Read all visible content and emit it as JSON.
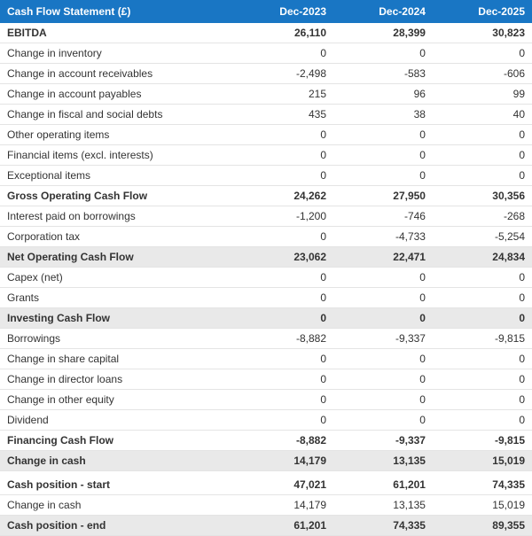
{
  "table": {
    "header": {
      "title": "Cash Flow Statement (£)",
      "periods": [
        "Dec-2023",
        "Dec-2024",
        "Dec-2025"
      ]
    },
    "colors": {
      "header_bg": "#1976c4",
      "header_fg": "#ffffff",
      "row_border": "#e4e4e4",
      "shaded_bg": "#e9e9e9",
      "text": "#333333"
    },
    "fontsize": 12,
    "rows": [
      {
        "label": "EBITDA",
        "v": [
          "26,110",
          "28,399",
          "30,823"
        ],
        "bold": true
      },
      {
        "label": "Change in inventory",
        "v": [
          "0",
          "0",
          "0"
        ]
      },
      {
        "label": "Change in account receivables",
        "v": [
          "-2,498",
          "-583",
          "-606"
        ]
      },
      {
        "label": "Change in account payables",
        "v": [
          "215",
          "96",
          "99"
        ]
      },
      {
        "label": "Change in fiscal and social debts",
        "v": [
          "435",
          "38",
          "40"
        ]
      },
      {
        "label": "Other operating items",
        "v": [
          "0",
          "0",
          "0"
        ]
      },
      {
        "label": "Financial items (excl. interests)",
        "v": [
          "0",
          "0",
          "0"
        ]
      },
      {
        "label": "Exceptional items",
        "v": [
          "0",
          "0",
          "0"
        ]
      },
      {
        "label": "Gross Operating Cash Flow",
        "v": [
          "24,262",
          "27,950",
          "30,356"
        ],
        "bold": true
      },
      {
        "label": "Interest paid on borrowings",
        "v": [
          "-1,200",
          "-746",
          "-268"
        ]
      },
      {
        "label": "Corporation tax",
        "v": [
          "0",
          "-4,733",
          "-5,254"
        ]
      },
      {
        "label": "Net Operating Cash Flow",
        "v": [
          "23,062",
          "22,471",
          "24,834"
        ],
        "bold": true,
        "shaded": true
      },
      {
        "label": "Capex (net)",
        "v": [
          "0",
          "0",
          "0"
        ]
      },
      {
        "label": "Grants",
        "v": [
          "0",
          "0",
          "0"
        ]
      },
      {
        "label": "Investing Cash Flow",
        "v": [
          "0",
          "0",
          "0"
        ],
        "bold": true,
        "shaded": true
      },
      {
        "label": "Borrowings",
        "v": [
          "-8,882",
          "-9,337",
          "-9,815"
        ]
      },
      {
        "label": "Change in share capital",
        "v": [
          "0",
          "0",
          "0"
        ]
      },
      {
        "label": "Change in director loans",
        "v": [
          "0",
          "0",
          "0"
        ]
      },
      {
        "label": "Change in other equity",
        "v": [
          "0",
          "0",
          "0"
        ]
      },
      {
        "label": "Dividend",
        "v": [
          "0",
          "0",
          "0"
        ]
      },
      {
        "label": "Financing Cash Flow",
        "v": [
          "-8,882",
          "-9,337",
          "-9,815"
        ],
        "bold": true
      },
      {
        "label": "Change in cash",
        "v": [
          "14,179",
          "13,135",
          "15,019"
        ],
        "bold": true,
        "shaded": true
      },
      {
        "spacer": true
      },
      {
        "label": "Cash position - start",
        "v": [
          "47,021",
          "61,201",
          "74,335"
        ],
        "bold": true
      },
      {
        "label": "Change in cash",
        "v": [
          "14,179",
          "13,135",
          "15,019"
        ]
      },
      {
        "label": "Cash position - end",
        "v": [
          "61,201",
          "74,335",
          "89,355"
        ],
        "bold": true,
        "shaded": true
      }
    ]
  }
}
